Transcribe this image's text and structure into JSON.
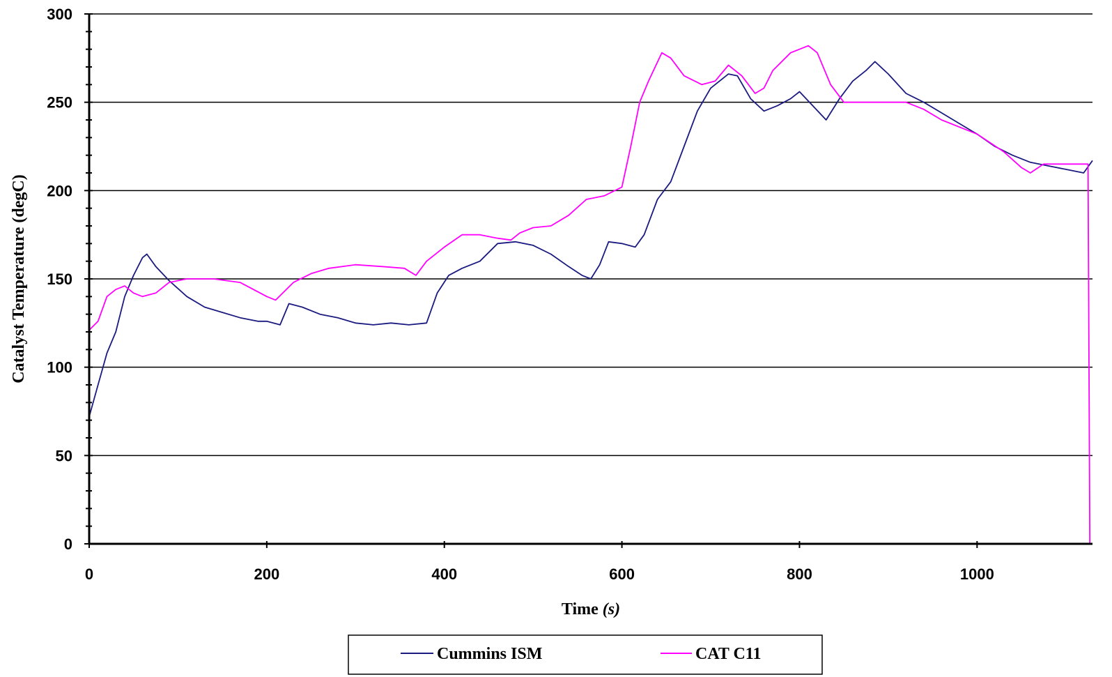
{
  "chart_data": {
    "type": "line",
    "xlabel": "Time (s)",
    "xlabel_main": "Time",
    "xlabel_unit": "(s)",
    "ylabel": "Catalyst Temperature (degC)",
    "xlim": [
      0,
      1130
    ],
    "ylim": [
      0,
      300
    ],
    "x_ticks": [
      0,
      200,
      400,
      600,
      800,
      1000
    ],
    "y_ticks": [
      0,
      50,
      100,
      150,
      200,
      250,
      300
    ],
    "grid": "horizontal major gridlines",
    "legend_position": "bottom",
    "series": [
      {
        "name": "Cummins ISM",
        "color": "#1a1a80",
        "points": [
          [
            0,
            72
          ],
          [
            10,
            90
          ],
          [
            20,
            108
          ],
          [
            30,
            120
          ],
          [
            40,
            140
          ],
          [
            50,
            152
          ],
          [
            60,
            162
          ],
          [
            65,
            164
          ],
          [
            75,
            157
          ],
          [
            90,
            149
          ],
          [
            110,
            140
          ],
          [
            130,
            134
          ],
          [
            150,
            131
          ],
          [
            170,
            128
          ],
          [
            190,
            126
          ],
          [
            200,
            126
          ],
          [
            215,
            124
          ],
          [
            225,
            136
          ],
          [
            240,
            134
          ],
          [
            260,
            130
          ],
          [
            280,
            128
          ],
          [
            300,
            125
          ],
          [
            320,
            124
          ],
          [
            340,
            125
          ],
          [
            360,
            124
          ],
          [
            380,
            125
          ],
          [
            392,
            142
          ],
          [
            405,
            152
          ],
          [
            420,
            156
          ],
          [
            440,
            160
          ],
          [
            460,
            170
          ],
          [
            480,
            171
          ],
          [
            500,
            169
          ],
          [
            520,
            164
          ],
          [
            540,
            157
          ],
          [
            555,
            152
          ],
          [
            565,
            150
          ],
          [
            575,
            158
          ],
          [
            585,
            171
          ],
          [
            600,
            170
          ],
          [
            615,
            168
          ],
          [
            625,
            175
          ],
          [
            640,
            195
          ],
          [
            655,
            205
          ],
          [
            670,
            225
          ],
          [
            685,
            245
          ],
          [
            700,
            258
          ],
          [
            720,
            266
          ],
          [
            730,
            265
          ],
          [
            745,
            252
          ],
          [
            760,
            245
          ],
          [
            775,
            248
          ],
          [
            790,
            252
          ],
          [
            800,
            256
          ],
          [
            815,
            248
          ],
          [
            830,
            240
          ],
          [
            845,
            252
          ],
          [
            860,
            262
          ],
          [
            875,
            268
          ],
          [
            885,
            273
          ],
          [
            900,
            266
          ],
          [
            920,
            255
          ],
          [
            940,
            250
          ],
          [
            960,
            244
          ],
          [
            980,
            238
          ],
          [
            1000,
            232
          ],
          [
            1020,
            225
          ],
          [
            1040,
            220
          ],
          [
            1060,
            216
          ],
          [
            1080,
            214
          ],
          [
            1100,
            212
          ],
          [
            1120,
            210
          ],
          [
            1130,
            217
          ]
        ]
      },
      {
        "name": "CAT C11",
        "color": "#ff00ff",
        "points": [
          [
            0,
            121
          ],
          [
            10,
            126
          ],
          [
            20,
            140
          ],
          [
            30,
            144
          ],
          [
            40,
            146
          ],
          [
            50,
            142
          ],
          [
            60,
            140
          ],
          [
            75,
            142
          ],
          [
            90,
            148
          ],
          [
            110,
            150
          ],
          [
            140,
            150
          ],
          [
            170,
            148
          ],
          [
            200,
            140
          ],
          [
            210,
            138
          ],
          [
            230,
            148
          ],
          [
            250,
            153
          ],
          [
            270,
            156
          ],
          [
            300,
            158
          ],
          [
            330,
            157
          ],
          [
            355,
            156
          ],
          [
            368,
            152
          ],
          [
            380,
            160
          ],
          [
            400,
            168
          ],
          [
            420,
            175
          ],
          [
            440,
            175
          ],
          [
            460,
            173
          ],
          [
            475,
            172
          ],
          [
            485,
            176
          ],
          [
            500,
            179
          ],
          [
            520,
            180
          ],
          [
            540,
            186
          ],
          [
            560,
            195
          ],
          [
            580,
            197
          ],
          [
            600,
            202
          ],
          [
            610,
            225
          ],
          [
            620,
            250
          ],
          [
            630,
            262
          ],
          [
            645,
            278
          ],
          [
            655,
            275
          ],
          [
            670,
            265
          ],
          [
            690,
            260
          ],
          [
            705,
            262
          ],
          [
            720,
            271
          ],
          [
            735,
            265
          ],
          [
            750,
            255
          ],
          [
            760,
            258
          ],
          [
            770,
            268
          ],
          [
            790,
            278
          ],
          [
            810,
            282
          ],
          [
            820,
            278
          ],
          [
            835,
            260
          ],
          [
            850,
            250
          ],
          [
            880,
            250
          ],
          [
            920,
            250
          ],
          [
            940,
            246
          ],
          [
            960,
            240
          ],
          [
            1000,
            232
          ],
          [
            1030,
            222
          ],
          [
            1050,
            213
          ],
          [
            1060,
            210
          ],
          [
            1075,
            215
          ],
          [
            1100,
            215
          ],
          [
            1125,
            215
          ],
          [
            1127,
            0
          ]
        ]
      }
    ]
  }
}
